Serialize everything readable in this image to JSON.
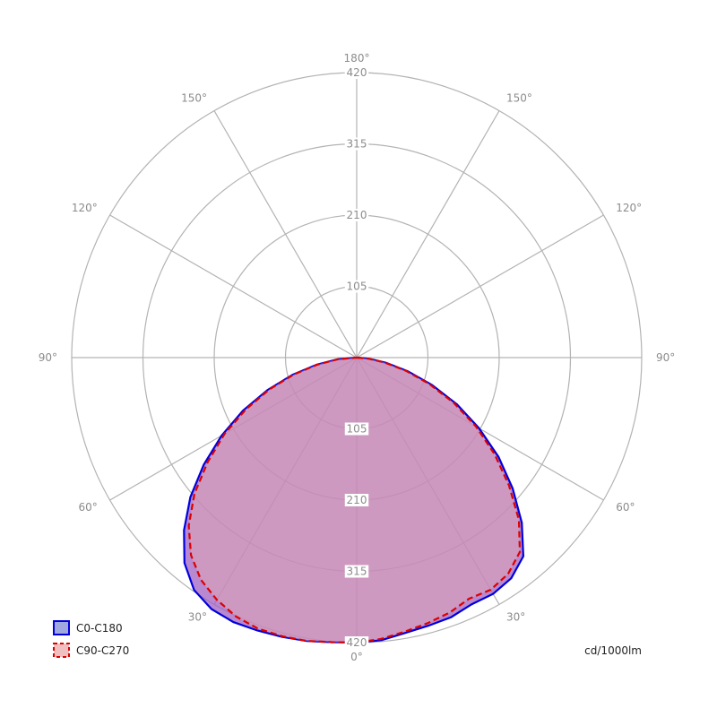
{
  "chart_data": {
    "type": "polar",
    "unit_label": "cd/1000lm",
    "radial_ticks": [
      105,
      210,
      315,
      420
    ],
    "radial_max": 420,
    "angle_ticks": [
      0,
      30,
      60,
      90,
      120,
      150,
      180
    ],
    "angle_tick_labels": [
      "0°",
      "30°",
      "60°",
      "90°",
      "120°",
      "150°",
      "180°"
    ],
    "series": [
      {
        "name": "C0-C180",
        "color": "#0000dd",
        "fill": "#a060c0",
        "dashed": false,
        "left": [
          [
            0,
            420
          ],
          [
            5,
            421
          ],
          [
            10,
            424
          ],
          [
            15,
            426
          ],
          [
            20,
            428
          ],
          [
            25,
            430
          ],
          [
            30,
            428
          ],
          [
            35,
            418
          ],
          [
            40,
            395
          ],
          [
            45,
            360
          ],
          [
            50,
            320
          ],
          [
            55,
            275
          ],
          [
            60,
            230
          ],
          [
            65,
            185
          ],
          [
            70,
            140
          ],
          [
            75,
            98
          ],
          [
            80,
            60
          ],
          [
            85,
            28
          ],
          [
            90,
            0
          ]
        ],
        "right": [
          [
            0,
            420
          ],
          [
            5,
            418
          ],
          [
            10,
            412
          ],
          [
            15,
            409
          ],
          [
            20,
            407
          ],
          [
            25,
            401
          ],
          [
            30,
            402
          ],
          [
            35,
            397
          ],
          [
            40,
            382
          ],
          [
            45,
            344
          ],
          [
            50,
            300
          ],
          [
            55,
            255
          ],
          [
            60,
            208
          ],
          [
            65,
            163
          ],
          [
            70,
            118
          ],
          [
            75,
            78
          ],
          [
            80,
            44
          ],
          [
            85,
            18
          ],
          [
            90,
            0
          ]
        ]
      },
      {
        "name": "C90-C270",
        "color": "#dd0000",
        "fill": "#e8b0b0",
        "dashed": true,
        "left": [
          [
            0,
            420
          ],
          [
            5,
            421
          ],
          [
            10,
            424
          ],
          [
            15,
            425
          ],
          [
            20,
            425
          ],
          [
            25,
            421
          ],
          [
            30,
            412
          ],
          [
            35,
            400
          ],
          [
            40,
            380
          ],
          [
            45,
            350
          ],
          [
            50,
            312
          ],
          [
            55,
            268
          ],
          [
            60,
            225
          ],
          [
            65,
            180
          ],
          [
            70,
            137
          ],
          [
            75,
            96
          ],
          [
            80,
            59
          ],
          [
            85,
            28
          ],
          [
            90,
            0
          ]
        ],
        "right": [
          [
            0,
            420
          ],
          [
            5,
            416
          ],
          [
            10,
            410
          ],
          [
            15,
            405
          ],
          [
            20,
            400
          ],
          [
            25,
            392
          ],
          [
            30,
            395
          ],
          [
            35,
            389
          ],
          [
            40,
            374
          ],
          [
            45,
            338
          ],
          [
            50,
            293
          ],
          [
            55,
            248
          ],
          [
            60,
            203
          ],
          [
            65,
            158
          ],
          [
            70,
            114
          ],
          [
            75,
            75
          ],
          [
            80,
            42
          ],
          [
            85,
            17
          ],
          [
            90,
            0
          ]
        ]
      }
    ]
  }
}
